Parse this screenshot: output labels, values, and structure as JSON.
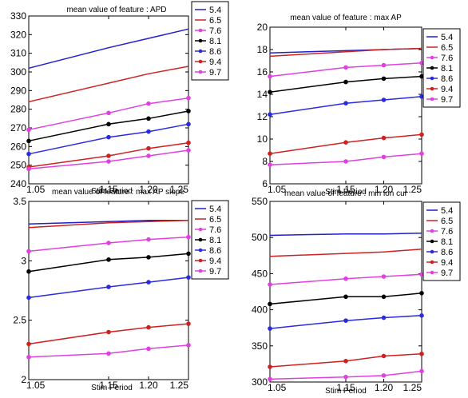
{
  "colors": {
    "5.4": "#1f1fcc",
    "6.5": "#cc2222",
    "7.6": "#e040e0",
    "8.1": "#000000",
    "8.6": "#2a2ae0",
    "9.4": "#d02020",
    "9.7": "#e040e0"
  },
  "chart_data": [
    {
      "type": "line",
      "title": "mean value of feature : APD",
      "xlabel": "Stim Period",
      "ylabel": "",
      "x": [
        1.05,
        1.15,
        1.2,
        1.25
      ],
      "xticks": [
        "1.05",
        "1.15",
        "1.20",
        "1.25"
      ],
      "ylim": [
        240,
        330
      ],
      "yticks": [
        "240",
        "250",
        "260",
        "270",
        "280",
        "290",
        "300",
        "310",
        "320",
        "330"
      ],
      "legend_position": "top-right",
      "series": [
        {
          "name": "5.4",
          "values": [
            302,
            313,
            318,
            323
          ],
          "marker": "none"
        },
        {
          "name": "6.5",
          "values": [
            284,
            294,
            299,
            303
          ],
          "marker": "none"
        },
        {
          "name": "7.6",
          "values": [
            269,
            278,
            283,
            286
          ],
          "marker": "dot"
        },
        {
          "name": "8.1",
          "values": [
            263,
            272,
            275,
            279
          ],
          "marker": "dot"
        },
        {
          "name": "8.6",
          "values": [
            256,
            265,
            268,
            272
          ],
          "marker": "dot"
        },
        {
          "name": "9.4",
          "values": [
            249,
            255,
            259,
            262
          ],
          "marker": "dot"
        },
        {
          "name": "9.7",
          "values": [
            248,
            252,
            255,
            258
          ],
          "marker": "dot"
        }
      ]
    },
    {
      "type": "line",
      "title": "mean value of feature : max AP",
      "xlabel": "Stim Period",
      "ylabel": "",
      "x": [
        1.05,
        1.15,
        1.2,
        1.25
      ],
      "xticks": [
        "1.05",
        "1.15",
        "1.20",
        "1.25"
      ],
      "ylim": [
        6,
        20
      ],
      "yticks": [
        "6",
        "8",
        "10",
        "12",
        "14",
        "16",
        "18",
        "20"
      ],
      "legend_position": "top-right",
      "series": [
        {
          "name": "5.4",
          "values": [
            17.7,
            17.9,
            18.0,
            18.1
          ],
          "marker": "none"
        },
        {
          "name": "6.5",
          "values": [
            17.4,
            17.8,
            18.0,
            18.1
          ],
          "marker": "none"
        },
        {
          "name": "7.6",
          "values": [
            15.6,
            16.4,
            16.6,
            16.8
          ],
          "marker": "dot"
        },
        {
          "name": "8.1",
          "values": [
            14.2,
            15.1,
            15.4,
            15.6
          ],
          "marker": "dot"
        },
        {
          "name": "8.6",
          "values": [
            12.2,
            13.2,
            13.5,
            13.8
          ],
          "marker": "dot"
        },
        {
          "name": "9.4",
          "values": [
            8.7,
            9.7,
            10.1,
            10.4
          ],
          "marker": "dot"
        },
        {
          "name": "9.7",
          "values": [
            7.7,
            8.0,
            8.4,
            8.7
          ],
          "marker": "dot"
        }
      ]
    },
    {
      "type": "line",
      "title": "mean value of feature : max AP slope",
      "xlabel": "Stim Period",
      "ylabel": "",
      "x": [
        1.05,
        1.15,
        1.2,
        1.25
      ],
      "xticks": [
        "1.05",
        "1.15",
        "1.20",
        "1.25"
      ],
      "ylim": [
        2,
        3.5
      ],
      "yticks": [
        "2",
        "2.5",
        "3",
        "3.5"
      ],
      "legend_position": "top-right",
      "series": [
        {
          "name": "5.4",
          "values": [
            3.31,
            3.33,
            3.34,
            3.34
          ],
          "marker": "none"
        },
        {
          "name": "6.5",
          "values": [
            3.28,
            3.32,
            3.33,
            3.34
          ],
          "marker": "none"
        },
        {
          "name": "7.6",
          "values": [
            3.08,
            3.15,
            3.18,
            3.2
          ],
          "marker": "dot"
        },
        {
          "name": "8.1",
          "values": [
            2.91,
            3.01,
            3.03,
            3.06
          ],
          "marker": "dot"
        },
        {
          "name": "8.6",
          "values": [
            2.69,
            2.78,
            2.82,
            2.86
          ],
          "marker": "dot"
        },
        {
          "name": "9.4",
          "values": [
            2.3,
            2.4,
            2.44,
            2.47
          ],
          "marker": "dot"
        },
        {
          "name": "9.7",
          "values": [
            2.19,
            2.22,
            2.26,
            2.29
          ],
          "marker": "dot"
        }
      ]
    },
    {
      "type": "line",
      "title": "mean value of feature : min ion cur",
      "xlabel": "Stim Period",
      "ylabel": "",
      "x": [
        1.05,
        1.15,
        1.2,
        1.25
      ],
      "xticks": [
        "1.05",
        "1.15",
        "1.20",
        "1.25"
      ],
      "ylim": [
        300,
        550
      ],
      "yticks": [
        "300",
        "350",
        "400",
        "450",
        "500",
        "550"
      ],
      "legend_position": "top-right",
      "series": [
        {
          "name": "5.4",
          "values": [
            503,
            505,
            505,
            506
          ],
          "marker": "none"
        },
        {
          "name": "6.5",
          "values": [
            474,
            478,
            480,
            484
          ],
          "marker": "none"
        },
        {
          "name": "7.6",
          "values": [
            435,
            443,
            446,
            449
          ],
          "marker": "dot"
        },
        {
          "name": "8.1",
          "values": [
            408,
            418,
            418,
            423
          ],
          "marker": "dot"
        },
        {
          "name": "8.6",
          "values": [
            374,
            385,
            389,
            392
          ],
          "marker": "dot"
        },
        {
          "name": "9.4",
          "values": [
            321,
            329,
            336,
            339
          ],
          "marker": "dot"
        },
        {
          "name": "9.7",
          "values": [
            304,
            307,
            309,
            315
          ],
          "marker": "dot"
        }
      ]
    }
  ]
}
